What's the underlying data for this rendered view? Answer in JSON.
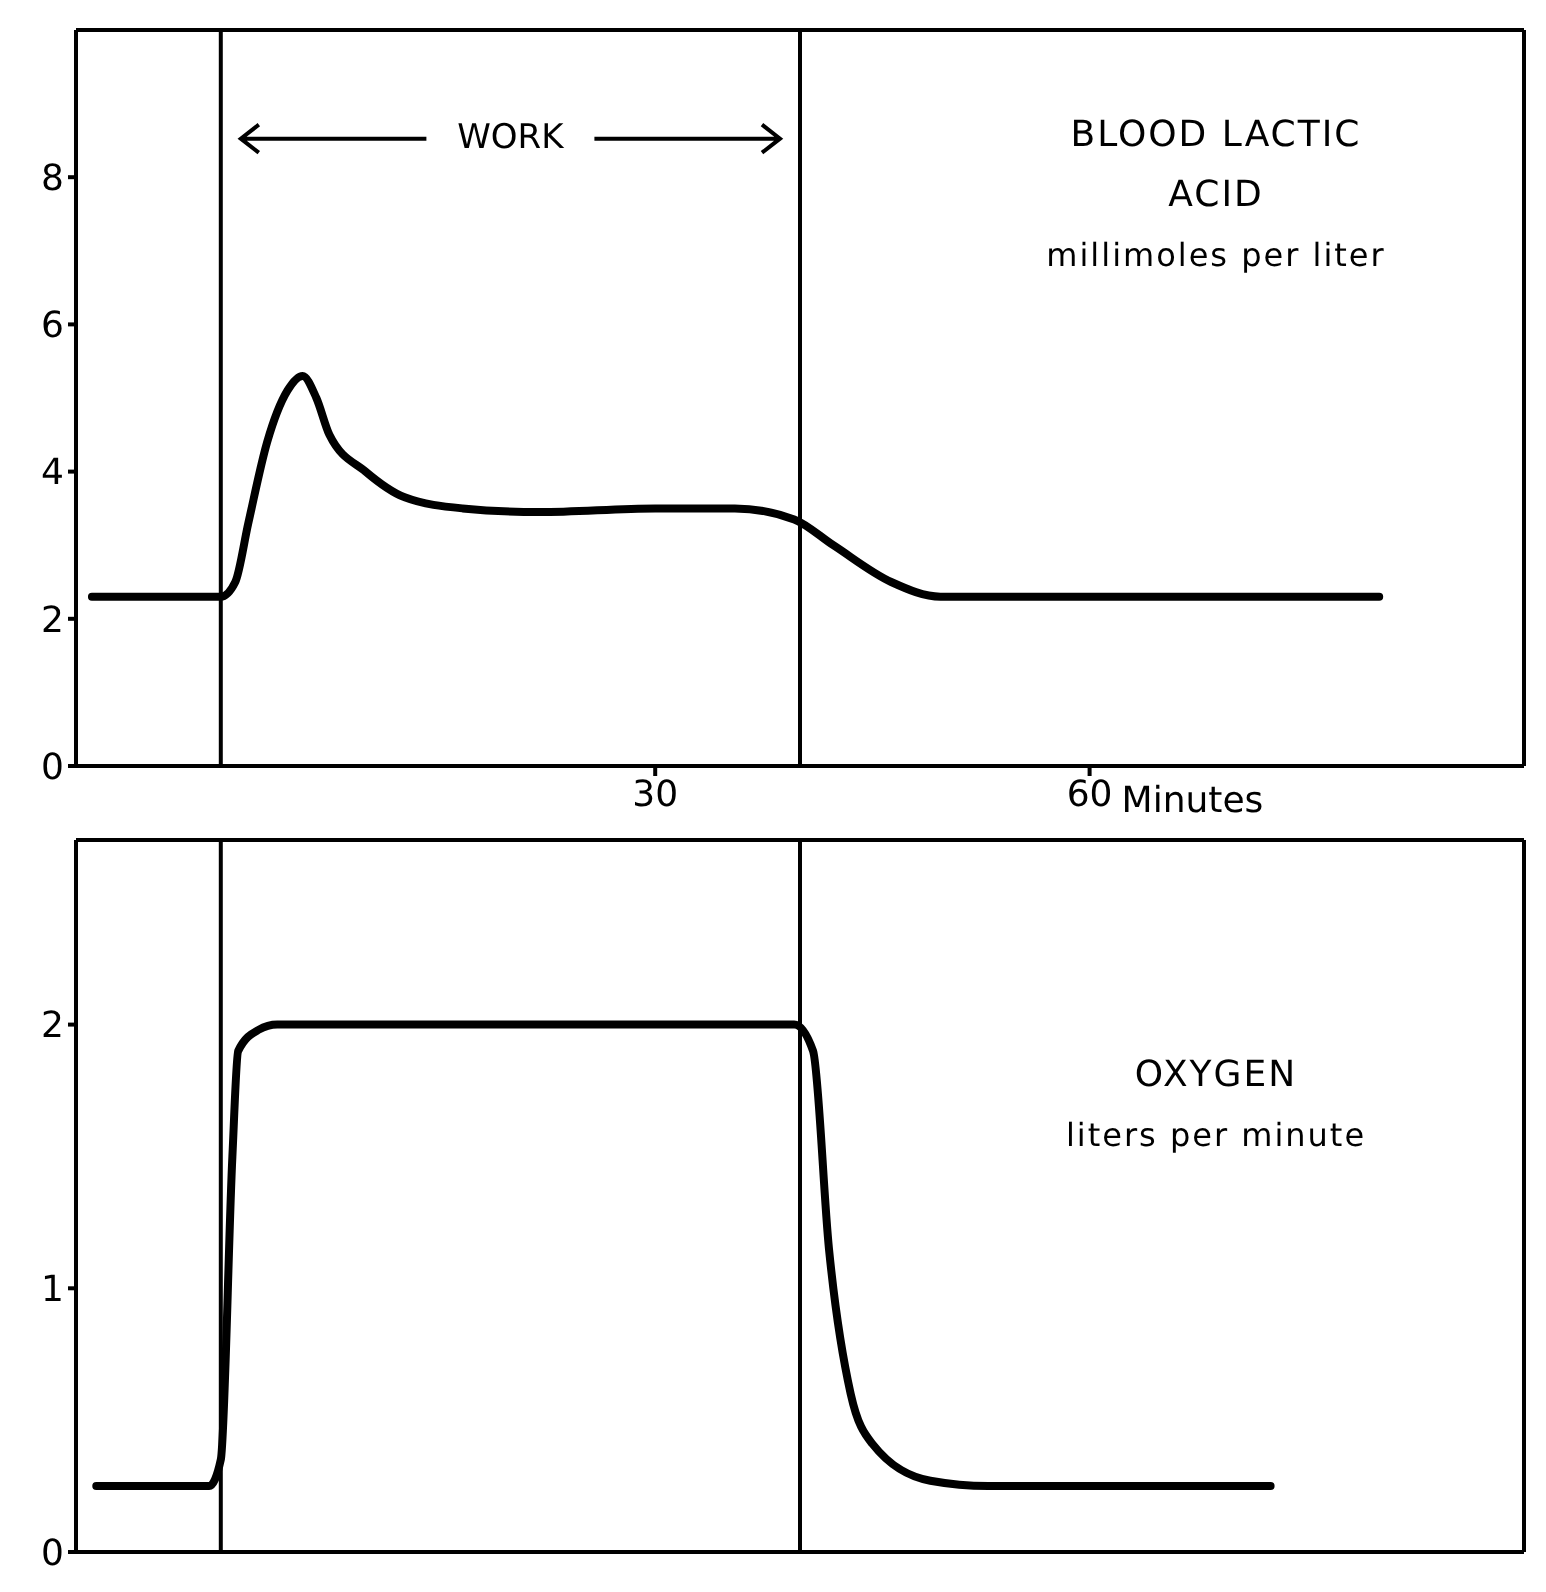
{
  "chart_data": [
    {
      "type": "line",
      "annotations": [
        "WORK"
      ],
      "title": "BLOOD LACTIC ACID",
      "ylabel": "millimoles per liter",
      "xlabel": "Minutes",
      "series": [
        {
          "color": "#000000",
          "x": [
            -8.9,
            -4,
            0,
            1,
            1.9,
            3.2,
            4.6,
            5.65,
            6.6,
            7.5,
            10,
            12.7,
            16.7,
            22,
            30,
            35.5,
            39.6,
            42.3,
            46.3,
            49.7,
            60,
            70,
            80
          ],
          "values": [
            2.3,
            2.3,
            2.3,
            2.5,
            3.3,
            4.4,
            5.1,
            5.3,
            5.0,
            4.5,
            4.0,
            3.65,
            3.5,
            3.45,
            3.5,
            3.5,
            3.35,
            3.0,
            2.5,
            2.3,
            2.3,
            2.3,
            2.3
          ]
        }
      ],
      "xlim": [
        -10,
        90
      ],
      "xticks": [
        30,
        60
      ],
      "ylim": [
        0,
        10
      ],
      "yticks": [
        0,
        2,
        4,
        6,
        8
      ],
      "ref_lines": [
        {
          "axis": "x",
          "value": 0
        },
        {
          "axis": "x",
          "value": 40
        }
      ]
    },
    {
      "type": "line",
      "title": "OXYGEN",
      "ylabel": "liters per minute",
      "series": [
        {
          "color": "#000000",
          "x": [
            -8.6,
            -4,
            -0.8,
            0,
            0.8,
            1.2,
            2.6,
            3.9,
            20,
            39.6,
            40.9,
            42,
            43.5,
            45,
            49,
            53,
            60,
            72.5
          ],
          "values": [
            0.25,
            0.25,
            0.25,
            0.35,
            1.5,
            1.9,
            1.98,
            2.0,
            2.0,
            2.0,
            1.9,
            1.15,
            0.6,
            0.41,
            0.27,
            0.25,
            0.25,
            0.25
          ]
        }
      ],
      "xlim": [
        -10,
        90
      ],
      "ylim": [
        0,
        2.7
      ],
      "yticks": [
        0,
        1,
        2
      ],
      "tick_labels": "y",
      "ref_lines": [
        {
          "axis": "x",
          "value": 0
        },
        {
          "axis": "x",
          "value": 40
        }
      ]
    }
  ]
}
